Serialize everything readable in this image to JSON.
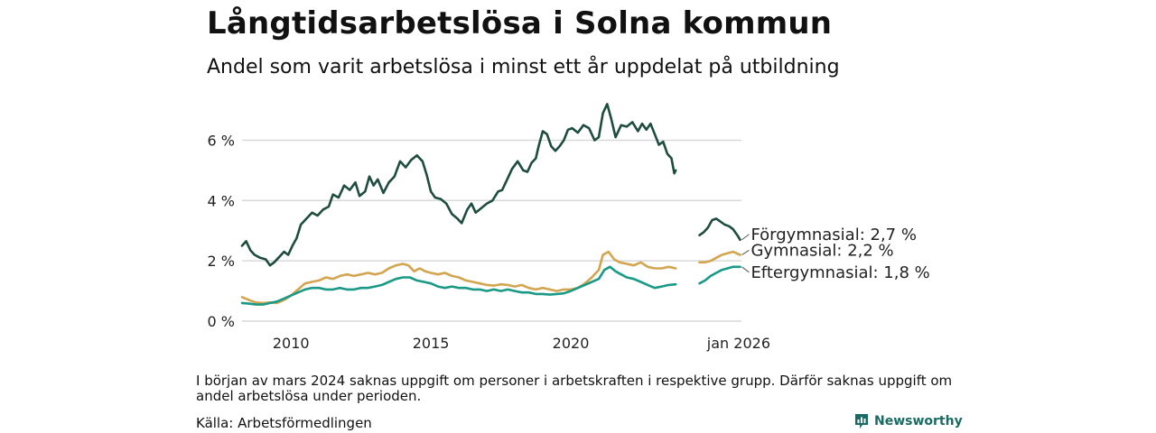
{
  "title": "Långtidsarbetslösa i Solna kommun",
  "subtitle": "Andel som varit arbetslösa i minst ett år uppdelat på utbildning",
  "note": "I början av mars 2024 saknas uppgift om personer i arbetskraften i respektive grupp. Därför saknas uppgift om andel arbetslösa under perioden.",
  "source": "Källa: Arbetsförmedlingen",
  "brand": "Newsworthy",
  "colors": {
    "forgymnasial": "#1e4d40",
    "gymnasial": "#d4a550",
    "eftergymnasial": "#1a9a86",
    "grid": "#d9d9d9",
    "brand": "#1a6b63"
  },
  "chart_data": {
    "type": "line",
    "x_unit": "year (decimal)",
    "xlim": [
      2008.25,
      2026.1
    ],
    "ylim": [
      0,
      7.3
    ],
    "y_ticks": [
      0,
      2,
      4,
      6
    ],
    "y_tick_labels": [
      "0 %",
      "2 %",
      "4 %",
      "6 %"
    ],
    "x_ticks": [
      2010,
      2015,
      2020,
      2026.0
    ],
    "x_tick_labels": [
      "2010",
      "2015",
      "2020",
      "jan 2026"
    ],
    "grid": "horizontal",
    "gap": [
      2023.75,
      2024.6
    ],
    "series": [
      {
        "name": "Förgymnasial",
        "end_label": "Förgymnasial: 2,7 %",
        "color_key": "forgymnasial",
        "points": [
          [
            2008.25,
            2.5
          ],
          [
            2008.4,
            2.65
          ],
          [
            2008.55,
            2.35
          ],
          [
            2008.7,
            2.2
          ],
          [
            2008.9,
            2.1
          ],
          [
            2009.1,
            2.05
          ],
          [
            2009.25,
            1.85
          ],
          [
            2009.4,
            1.95
          ],
          [
            2009.55,
            2.1
          ],
          [
            2009.75,
            2.3
          ],
          [
            2009.9,
            2.2
          ],
          [
            2010.05,
            2.5
          ],
          [
            2010.2,
            2.75
          ],
          [
            2010.35,
            3.2
          ],
          [
            2010.55,
            3.4
          ],
          [
            2010.75,
            3.6
          ],
          [
            2010.95,
            3.5
          ],
          [
            2011.15,
            3.7
          ],
          [
            2011.35,
            3.8
          ],
          [
            2011.5,
            4.2
          ],
          [
            2011.7,
            4.1
          ],
          [
            2011.9,
            4.5
          ],
          [
            2012.1,
            4.35
          ],
          [
            2012.3,
            4.6
          ],
          [
            2012.45,
            4.15
          ],
          [
            2012.65,
            4.3
          ],
          [
            2012.8,
            4.8
          ],
          [
            2012.95,
            4.5
          ],
          [
            2013.1,
            4.7
          ],
          [
            2013.3,
            4.25
          ],
          [
            2013.5,
            4.6
          ],
          [
            2013.7,
            4.8
          ],
          [
            2013.9,
            5.3
          ],
          [
            2014.1,
            5.1
          ],
          [
            2014.3,
            5.35
          ],
          [
            2014.5,
            5.5
          ],
          [
            2014.7,
            5.3
          ],
          [
            2014.85,
            4.85
          ],
          [
            2015.0,
            4.3
          ],
          [
            2015.15,
            4.1
          ],
          [
            2015.35,
            4.05
          ],
          [
            2015.55,
            3.9
          ],
          [
            2015.75,
            3.55
          ],
          [
            2015.95,
            3.4
          ],
          [
            2016.1,
            3.25
          ],
          [
            2016.3,
            3.7
          ],
          [
            2016.45,
            3.9
          ],
          [
            2016.6,
            3.6
          ],
          [
            2016.8,
            3.75
          ],
          [
            2017.0,
            3.9
          ],
          [
            2017.2,
            4.0
          ],
          [
            2017.4,
            4.3
          ],
          [
            2017.55,
            4.35
          ],
          [
            2017.7,
            4.65
          ],
          [
            2017.9,
            5.05
          ],
          [
            2018.1,
            5.3
          ],
          [
            2018.3,
            5.0
          ],
          [
            2018.45,
            4.95
          ],
          [
            2018.6,
            5.25
          ],
          [
            2018.75,
            5.4
          ],
          [
            2018.85,
            5.8
          ],
          [
            2019.0,
            6.3
          ],
          [
            2019.15,
            6.2
          ],
          [
            2019.3,
            5.8
          ],
          [
            2019.45,
            5.65
          ],
          [
            2019.6,
            5.8
          ],
          [
            2019.75,
            6.0
          ],
          [
            2019.9,
            6.35
          ],
          [
            2020.05,
            6.4
          ],
          [
            2020.25,
            6.25
          ],
          [
            2020.45,
            6.5
          ],
          [
            2020.65,
            6.4
          ],
          [
            2020.85,
            6.0
          ],
          [
            2021.0,
            6.1
          ],
          [
            2021.15,
            6.9
          ],
          [
            2021.3,
            7.2
          ],
          [
            2021.45,
            6.7
          ],
          [
            2021.6,
            6.1
          ],
          [
            2021.8,
            6.5
          ],
          [
            2022.0,
            6.45
          ],
          [
            2022.2,
            6.6
          ],
          [
            2022.4,
            6.3
          ],
          [
            2022.55,
            6.55
          ],
          [
            2022.7,
            6.35
          ],
          [
            2022.85,
            6.55
          ],
          [
            2023.0,
            6.2
          ],
          [
            2023.15,
            5.85
          ],
          [
            2023.3,
            5.95
          ],
          [
            2023.45,
            5.55
          ],
          [
            2023.6,
            5.4
          ],
          [
            2023.7,
            4.9
          ],
          [
            2023.75,
            5.0
          ],
          null,
          [
            2024.6,
            2.85
          ],
          [
            2024.75,
            2.95
          ],
          [
            2024.9,
            3.1
          ],
          [
            2025.05,
            3.35
          ],
          [
            2025.2,
            3.4
          ],
          [
            2025.35,
            3.3
          ],
          [
            2025.5,
            3.2
          ],
          [
            2025.65,
            3.15
          ],
          [
            2025.8,
            3.05
          ],
          [
            2025.95,
            2.85
          ],
          [
            2026.05,
            2.7
          ]
        ]
      },
      {
        "name": "Gymnasial",
        "end_label": "Gymnasial: 2,2 %",
        "color_key": "gymnasial",
        "points": [
          [
            2008.25,
            0.8
          ],
          [
            2008.5,
            0.7
          ],
          [
            2008.75,
            0.62
          ],
          [
            2009.0,
            0.6
          ],
          [
            2009.25,
            0.62
          ],
          [
            2009.5,
            0.6
          ],
          [
            2009.75,
            0.7
          ],
          [
            2010.0,
            0.85
          ],
          [
            2010.25,
            1.05
          ],
          [
            2010.5,
            1.25
          ],
          [
            2010.75,
            1.3
          ],
          [
            2011.0,
            1.35
          ],
          [
            2011.25,
            1.45
          ],
          [
            2011.5,
            1.4
          ],
          [
            2011.75,
            1.5
          ],
          [
            2012.0,
            1.55
          ],
          [
            2012.25,
            1.5
          ],
          [
            2012.5,
            1.55
          ],
          [
            2012.75,
            1.6
          ],
          [
            2013.0,
            1.55
          ],
          [
            2013.25,
            1.6
          ],
          [
            2013.5,
            1.75
          ],
          [
            2013.75,
            1.85
          ],
          [
            2014.0,
            1.9
          ],
          [
            2014.2,
            1.85
          ],
          [
            2014.4,
            1.65
          ],
          [
            2014.6,
            1.75
          ],
          [
            2014.8,
            1.65
          ],
          [
            2015.0,
            1.6
          ],
          [
            2015.25,
            1.55
          ],
          [
            2015.5,
            1.6
          ],
          [
            2015.75,
            1.5
          ],
          [
            2016.0,
            1.45
          ],
          [
            2016.25,
            1.35
          ],
          [
            2016.5,
            1.3
          ],
          [
            2016.75,
            1.25
          ],
          [
            2017.0,
            1.2
          ],
          [
            2017.25,
            1.18
          ],
          [
            2017.5,
            1.22
          ],
          [
            2017.75,
            1.2
          ],
          [
            2018.0,
            1.15
          ],
          [
            2018.25,
            1.2
          ],
          [
            2018.5,
            1.1
          ],
          [
            2018.75,
            1.05
          ],
          [
            2019.0,
            1.1
          ],
          [
            2019.25,
            1.05
          ],
          [
            2019.5,
            1.0
          ],
          [
            2019.75,
            1.05
          ],
          [
            2020.0,
            1.05
          ],
          [
            2020.25,
            1.1
          ],
          [
            2020.5,
            1.25
          ],
          [
            2020.75,
            1.45
          ],
          [
            2021.0,
            1.7
          ],
          [
            2021.15,
            2.2
          ],
          [
            2021.35,
            2.3
          ],
          [
            2021.55,
            2.05
          ],
          [
            2021.75,
            1.95
          ],
          [
            2022.0,
            1.9
          ],
          [
            2022.25,
            1.85
          ],
          [
            2022.5,
            1.95
          ],
          [
            2022.75,
            1.8
          ],
          [
            2023.0,
            1.75
          ],
          [
            2023.25,
            1.75
          ],
          [
            2023.5,
            1.8
          ],
          [
            2023.75,
            1.75
          ],
          null,
          [
            2024.6,
            1.95
          ],
          [
            2024.8,
            1.95
          ],
          [
            2025.0,
            2.0
          ],
          [
            2025.2,
            2.1
          ],
          [
            2025.4,
            2.2
          ],
          [
            2025.6,
            2.25
          ],
          [
            2025.8,
            2.3
          ],
          [
            2026.05,
            2.2
          ]
        ]
      },
      {
        "name": "Eftergymnasial",
        "end_label": "Eftergymnasial: 1,8 %",
        "color_key": "eftergymnasial",
        "points": [
          [
            2008.25,
            0.6
          ],
          [
            2008.5,
            0.58
          ],
          [
            2008.75,
            0.55
          ],
          [
            2009.0,
            0.55
          ],
          [
            2009.25,
            0.6
          ],
          [
            2009.5,
            0.65
          ],
          [
            2009.75,
            0.75
          ],
          [
            2010.0,
            0.85
          ],
          [
            2010.25,
            0.95
          ],
          [
            2010.5,
            1.05
          ],
          [
            2010.75,
            1.1
          ],
          [
            2011.0,
            1.1
          ],
          [
            2011.25,
            1.05
          ],
          [
            2011.5,
            1.05
          ],
          [
            2011.75,
            1.1
          ],
          [
            2012.0,
            1.05
          ],
          [
            2012.25,
            1.05
          ],
          [
            2012.5,
            1.1
          ],
          [
            2012.75,
            1.1
          ],
          [
            2013.0,
            1.15
          ],
          [
            2013.25,
            1.2
          ],
          [
            2013.5,
            1.3
          ],
          [
            2013.75,
            1.4
          ],
          [
            2014.0,
            1.45
          ],
          [
            2014.25,
            1.45
          ],
          [
            2014.5,
            1.35
          ],
          [
            2014.75,
            1.3
          ],
          [
            2015.0,
            1.25
          ],
          [
            2015.25,
            1.15
          ],
          [
            2015.5,
            1.1
          ],
          [
            2015.75,
            1.15
          ],
          [
            2016.0,
            1.1
          ],
          [
            2016.25,
            1.1
          ],
          [
            2016.5,
            1.05
          ],
          [
            2016.75,
            1.05
          ],
          [
            2017.0,
            1.0
          ],
          [
            2017.25,
            1.05
          ],
          [
            2017.5,
            1.0
          ],
          [
            2017.75,
            1.05
          ],
          [
            2018.0,
            1.0
          ],
          [
            2018.25,
            0.95
          ],
          [
            2018.5,
            0.95
          ],
          [
            2018.75,
            0.9
          ],
          [
            2019.0,
            0.9
          ],
          [
            2019.25,
            0.88
          ],
          [
            2019.5,
            0.9
          ],
          [
            2019.75,
            0.92
          ],
          [
            2020.0,
            1.0
          ],
          [
            2020.25,
            1.1
          ],
          [
            2020.5,
            1.2
          ],
          [
            2020.75,
            1.3
          ],
          [
            2021.0,
            1.4
          ],
          [
            2021.2,
            1.7
          ],
          [
            2021.4,
            1.8
          ],
          [
            2021.6,
            1.65
          ],
          [
            2021.8,
            1.55
          ],
          [
            2022.0,
            1.45
          ],
          [
            2022.25,
            1.4
          ],
          [
            2022.5,
            1.3
          ],
          [
            2022.75,
            1.2
          ],
          [
            2023.0,
            1.1
          ],
          [
            2023.25,
            1.15
          ],
          [
            2023.5,
            1.2
          ],
          [
            2023.75,
            1.22
          ],
          null,
          [
            2024.6,
            1.25
          ],
          [
            2024.8,
            1.35
          ],
          [
            2025.0,
            1.5
          ],
          [
            2025.2,
            1.6
          ],
          [
            2025.4,
            1.7
          ],
          [
            2025.6,
            1.75
          ],
          [
            2025.8,
            1.8
          ],
          [
            2026.05,
            1.8
          ]
        ]
      }
    ]
  }
}
